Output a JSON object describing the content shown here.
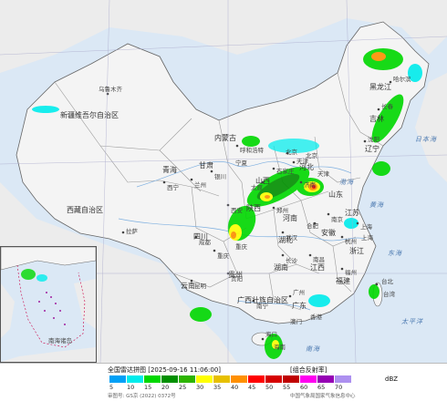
{
  "map": {
    "provinces": [
      {
        "name": "新疆维吾尔自治区",
        "key": "xinjiang"
      },
      {
        "name": "西藏自治区",
        "key": "xizang"
      },
      {
        "name": "青海",
        "key": "qinghai"
      },
      {
        "name": "甘肃",
        "key": "gansu"
      },
      {
        "name": "内蒙古",
        "key": "neimenggu"
      },
      {
        "name": "宁夏",
        "key": "ningxia"
      },
      {
        "name": "陕西",
        "key": "shaanxi"
      },
      {
        "name": "四川",
        "key": "sichuan"
      },
      {
        "name": "重庆",
        "key": "chongqing"
      },
      {
        "name": "云南",
        "key": "yunnan"
      },
      {
        "name": "贵州",
        "key": "guizhou"
      },
      {
        "name": "广西壮族自治区",
        "key": "guangxi"
      },
      {
        "name": "广东",
        "key": "guangdong"
      },
      {
        "name": "湖南",
        "key": "hunan"
      },
      {
        "name": "湖北",
        "key": "hubei"
      },
      {
        "name": "河南",
        "key": "henan"
      },
      {
        "name": "河北",
        "key": "hebei"
      },
      {
        "name": "山西",
        "key": "shanxi"
      },
      {
        "name": "山东",
        "key": "shandong"
      },
      {
        "name": "江苏",
        "key": "jiangsu"
      },
      {
        "name": "安徽",
        "key": "anhui"
      },
      {
        "name": "浙江",
        "key": "zhejiang"
      },
      {
        "name": "江西",
        "key": "jiangxi"
      },
      {
        "name": "福建",
        "key": "fujian"
      },
      {
        "name": "台湾",
        "key": "taiwan"
      },
      {
        "name": "海南",
        "key": "hainan"
      },
      {
        "name": "辽宁",
        "key": "liaoning"
      },
      {
        "name": "吉林",
        "key": "jilin"
      },
      {
        "name": "黑龙江",
        "key": "heilongjiang"
      },
      {
        "name": "北京",
        "key": "beijing"
      },
      {
        "name": "天津",
        "key": "tianjin"
      },
      {
        "name": "上海",
        "key": "shanghai"
      },
      {
        "name": "香港",
        "key": "hongkong"
      },
      {
        "name": "澳门",
        "key": "macau"
      }
    ],
    "cities": [
      "乌鲁木齐",
      "拉萨",
      "西宁",
      "兰州",
      "银川",
      "呼和浩特",
      "西安",
      "成都",
      "重庆",
      "贵阳",
      "昆明",
      "南宁",
      "广州",
      "长沙",
      "武汉",
      "郑州",
      "石家庄",
      "太原",
      "济南",
      "南京",
      "合肥",
      "杭州",
      "南昌",
      "福州",
      "台北",
      "海口",
      "沈阳",
      "长春",
      "哈尔滨",
      "北京",
      "天津",
      "上海"
    ],
    "seas": {
      "bohai": "渤海",
      "huanghai": "黄海",
      "donghai": "东海",
      "nanhai": "南海",
      "taipingyang": "太平洋",
      "riben": "日本海"
    },
    "inset_label": "南海诸岛"
  },
  "legend": {
    "title": "全国雷达拼图 [2025-09-16 11:06:00]",
    "product": "[组合反射率]",
    "unit": "dBZ",
    "review_no": "审图号: GS京 (2022) 0372号",
    "org": "中国气象局国家气象信息中心",
    "scale": [
      {
        "value": "5",
        "color": "#00a0f6"
      },
      {
        "value": "10",
        "color": "#00ecec"
      },
      {
        "value": "15",
        "color": "#00d800"
      },
      {
        "value": "20",
        "color": "#019000"
      },
      {
        "value": "25",
        "color": "#2db400"
      },
      {
        "value": "30",
        "color": "#ffff00"
      },
      {
        "value": "35",
        "color": "#e7c000"
      },
      {
        "value": "40",
        "color": "#ff9000"
      },
      {
        "value": "45",
        "color": "#ff0000"
      },
      {
        "value": "50",
        "color": "#d60000"
      },
      {
        "value": "55",
        "color": "#c00000"
      },
      {
        "value": "60",
        "color": "#ff00f0"
      },
      {
        "value": "65",
        "color": "#9600b4"
      },
      {
        "value": "70",
        "color": "#ad90f0"
      }
    ]
  }
}
